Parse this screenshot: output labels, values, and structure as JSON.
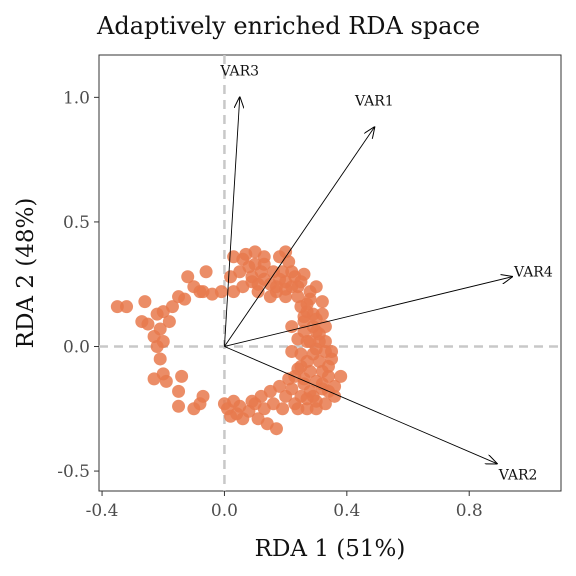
{
  "chart_data": {
    "type": "scatter",
    "title": "Adaptively enriched RDA space",
    "xlabel": "RDA 1 (51%)",
    "ylabel": "RDA 2 (48%)",
    "xlim": [
      -0.41,
      1.1
    ],
    "ylim": [
      -0.58,
      1.17
    ],
    "x_ticks": [
      -0.4,
      0.0,
      0.4,
      0.8
    ],
    "x_tick_labels": [
      "-0.4",
      "0.0",
      "0.4",
      "0.8"
    ],
    "y_ticks": [
      -0.5,
      0.0,
      0.5,
      1.0
    ],
    "y_tick_labels": [
      "-0.5",
      "0.0",
      "0.5",
      "1.0"
    ],
    "grid": false,
    "reference_lines": {
      "x": 0,
      "y": 0,
      "style": "dashed",
      "color": "#c8c8c8"
    },
    "point_color": "#E8794C",
    "arrow_color": "#000000",
    "arrows": [
      {
        "name": "VAR3",
        "x": 0.05,
        "y": 1.0
      },
      {
        "name": "VAR1",
        "x": 0.49,
        "y": 0.88
      },
      {
        "name": "VAR4",
        "x": 0.94,
        "y": 0.28
      },
      {
        "name": "VAR2",
        "x": 0.89,
        "y": -0.47
      }
    ],
    "points": [
      [
        -0.35,
        0.16
      ],
      [
        -0.32,
        0.16
      ],
      [
        -0.26,
        0.18
      ],
      [
        -0.22,
        0.13
      ],
      [
        -0.25,
        0.09
      ],
      [
        -0.27,
        0.1
      ],
      [
        -0.2,
        0.14
      ],
      [
        -0.18,
        0.1
      ],
      [
        -0.17,
        0.16
      ],
      [
        -0.15,
        0.2
      ],
      [
        -0.13,
        0.19
      ],
      [
        -0.1,
        0.24
      ],
      [
        -0.08,
        0.22
      ],
      [
        -0.12,
        0.28
      ],
      [
        -0.06,
        0.3
      ],
      [
        -0.07,
        0.22
      ],
      [
        -0.04,
        0.21
      ],
      [
        -0.01,
        0.22
      ],
      [
        0.03,
        0.22
      ],
      [
        0.06,
        0.24
      ],
      [
        0.02,
        0.28
      ],
      [
        0.05,
        0.3
      ],
      [
        0.03,
        0.36
      ],
      [
        0.07,
        0.37
      ],
      [
        0.1,
        0.38
      ],
      [
        0.13,
        0.36
      ],
      [
        0.1,
        0.33
      ],
      [
        0.12,
        0.3
      ],
      [
        0.09,
        0.28
      ],
      [
        0.13,
        0.27
      ],
      [
        0.11,
        0.22
      ],
      [
        0.15,
        0.25
      ],
      [
        0.17,
        0.22
      ],
      [
        0.2,
        0.38
      ],
      [
        0.19,
        0.3
      ],
      [
        0.22,
        0.3
      ],
      [
        0.2,
        0.26
      ],
      [
        0.24,
        0.24
      ],
      [
        0.2,
        0.2
      ],
      [
        0.24,
        0.2
      ],
      [
        0.25,
        0.16
      ],
      [
        0.28,
        0.22
      ],
      [
        0.27,
        0.17
      ],
      [
        0.3,
        0.24
      ],
      [
        0.32,
        0.18
      ],
      [
        0.29,
        0.13
      ],
      [
        0.26,
        0.1
      ],
      [
        0.29,
        0.08
      ],
      [
        0.33,
        0.08
      ],
      [
        0.31,
        0.05
      ],
      [
        0.26,
        0.06
      ],
      [
        0.24,
        0.03
      ],
      [
        0.28,
        0.02
      ],
      [
        0.3,
        -0.01
      ],
      [
        0.33,
        -0.02
      ],
      [
        0.25,
        -0.03
      ],
      [
        0.27,
        -0.06
      ],
      [
        0.31,
        -0.06
      ],
      [
        0.35,
        -0.05
      ],
      [
        0.24,
        -0.09
      ],
      [
        0.28,
        -0.1
      ],
      [
        0.32,
        -0.1
      ],
      [
        0.26,
        -0.13
      ],
      [
        0.3,
        -0.14
      ],
      [
        0.34,
        -0.12
      ],
      [
        0.38,
        -0.12
      ],
      [
        0.36,
        -0.16
      ],
      [
        0.32,
        -0.17
      ],
      [
        0.28,
        -0.18
      ],
      [
        0.25,
        -0.2
      ],
      [
        0.3,
        -0.22
      ],
      [
        0.27,
        -0.25
      ],
      [
        0.23,
        -0.23
      ],
      [
        0.2,
        -0.2
      ],
      [
        0.18,
        -0.16
      ],
      [
        0.15,
        -0.18
      ],
      [
        0.16,
        -0.23
      ],
      [
        0.13,
        -0.25
      ],
      [
        0.12,
        -0.2
      ],
      [
        0.09,
        -0.22
      ],
      [
        0.08,
        -0.26
      ],
      [
        0.05,
        -0.24
      ],
      [
        0.03,
        -0.22
      ],
      [
        0.0,
        -0.23
      ],
      [
        0.02,
        -0.28
      ],
      [
        0.06,
        -0.29
      ],
      [
        0.11,
        -0.29
      ],
      [
        0.14,
        -0.31
      ],
      [
        0.17,
        -0.33
      ],
      [
        -0.07,
        -0.2
      ],
      [
        -0.08,
        -0.23
      ],
      [
        -0.1,
        -0.25
      ],
      [
        -0.15,
        -0.24
      ],
      [
        -0.15,
        -0.18
      ],
      [
        -0.14,
        -0.12
      ],
      [
        -0.2,
        -0.11
      ],
      [
        -0.23,
        -0.13
      ],
      [
        -0.19,
        -0.14
      ],
      [
        -0.21,
        -0.05
      ],
      [
        -0.22,
        0.0
      ],
      [
        -0.23,
        0.04
      ],
      [
        -0.2,
        0.02
      ],
      [
        -0.21,
        0.07
      ],
      [
        0.26,
        0.12
      ],
      [
        0.22,
        0.08
      ],
      [
        0.22,
        -0.02
      ],
      [
        0.21,
        -0.13
      ],
      [
        0.26,
        -0.15
      ],
      [
        0.29,
        -0.2
      ],
      [
        0.33,
        -0.23
      ],
      [
        0.06,
        0.35
      ],
      [
        0.08,
        0.32
      ],
      [
        0.16,
        0.3
      ],
      [
        0.18,
        0.27
      ],
      [
        0.15,
        0.2
      ],
      [
        0.18,
        0.36
      ],
      [
        0.11,
        0.25
      ],
      [
        0.23,
        0.28
      ],
      [
        0.26,
        0.29
      ],
      [
        0.27,
        0.02
      ],
      [
        0.31,
        0.02
      ],
      [
        0.34,
        -0.08
      ],
      [
        0.36,
        -0.2
      ],
      [
        0.3,
        -0.25
      ],
      [
        0.19,
        -0.25
      ],
      [
        0.22,
        -0.17
      ],
      [
        0.04,
        -0.27
      ],
      [
        0.01,
        -0.25
      ],
      [
        0.17,
        0.24
      ],
      [
        0.13,
        0.33
      ],
      [
        0.21,
        0.34
      ],
      [
        0.25,
        0.26
      ],
      [
        0.28,
        0.19
      ],
      [
        0.32,
        0.13
      ],
      [
        0.3,
        0.11
      ],
      [
        0.27,
        0.14
      ],
      [
        0.33,
        0.02
      ],
      [
        0.35,
        -0.02
      ],
      [
        0.29,
        -0.03
      ],
      [
        0.32,
        -0.15
      ],
      [
        0.34,
        -0.18
      ],
      [
        0.24,
        -0.25
      ],
      [
        0.27,
        -0.21
      ],
      [
        0.1,
        -0.23
      ],
      [
        0.09,
        0.26
      ],
      [
        0.2,
        0.23
      ],
      [
        0.22,
        0.24
      ],
      [
        0.3,
        0.06
      ],
      [
        0.25,
        -0.08
      ],
      [
        0.23,
        -0.12
      ]
    ]
  }
}
